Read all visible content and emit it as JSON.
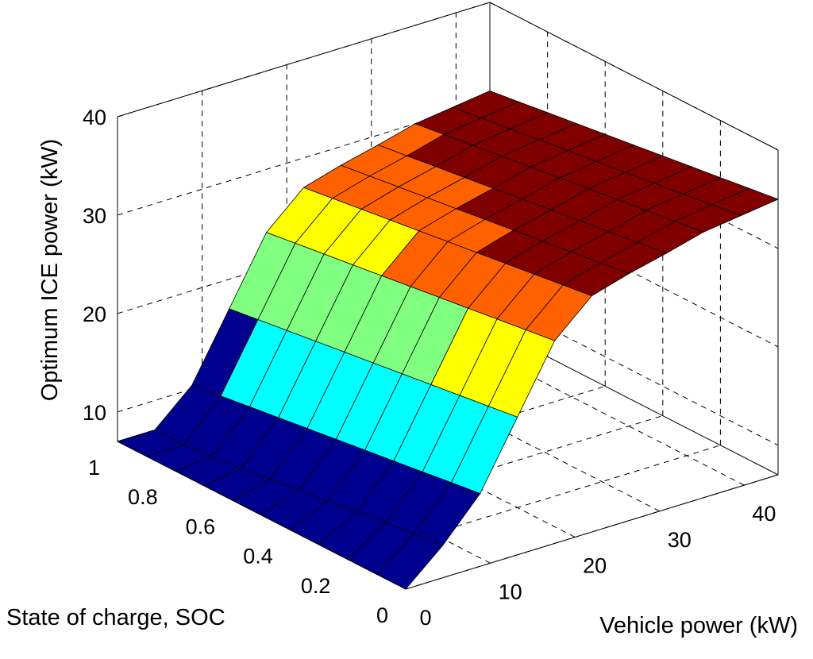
{
  "chart_data": {
    "type": "surface",
    "title": "",
    "xlabel": "Vehicle power (kW)",
    "ylabel": "State of charge, SOC",
    "zlabel": "Optimum ICE power (kW)",
    "x_ticks": [
      "0",
      "10",
      "20",
      "30",
      "40"
    ],
    "y_ticks": [
      "0",
      "0.2",
      "0.4",
      "0.6",
      "0.8",
      "1"
    ],
    "z_ticks": [
      "10",
      "20",
      "30",
      "40"
    ],
    "xlim": [
      0,
      44
    ],
    "ylim": [
      0,
      1
    ],
    "zlim": [
      7,
      40
    ],
    "grid": true,
    "colormap": "jet",
    "x": [
      0,
      4.4,
      8.8,
      13.2,
      17.6,
      22,
      26.4,
      30.8,
      35.2,
      39.6,
      44
    ],
    "y": [
      0,
      0.1,
      0.2,
      0.3,
      0.4,
      0.5,
      0.6,
      0.7,
      0.8,
      0.9,
      1.0
    ],
    "z": [
      [
        7,
        10.3,
        14.4,
        21.0,
        27.6,
        31.0,
        32.1,
        33.0,
        34.0,
        34.5,
        35.0
      ],
      [
        7,
        10.0,
        14.0,
        20.6,
        27.2,
        30.6,
        31.7,
        32.6,
        33.6,
        34.1,
        34.6
      ],
      [
        7,
        9.6,
        13.6,
        20.2,
        26.8,
        30.2,
        31.3,
        32.2,
        33.2,
        33.7,
        34.2
      ],
      [
        7,
        9.2,
        13.2,
        19.8,
        26.4,
        29.8,
        30.9,
        31.8,
        32.8,
        33.3,
        33.8
      ],
      [
        7,
        8.8,
        12.8,
        19.4,
        26.0,
        29.4,
        30.5,
        31.4,
        32.4,
        32.9,
        33.4
      ],
      [
        7,
        8.4,
        12.4,
        19.0,
        25.6,
        29.0,
        30.1,
        31.0,
        32.0,
        32.5,
        33.0
      ],
      [
        7,
        8.0,
        12.0,
        18.6,
        25.2,
        28.6,
        29.7,
        30.6,
        31.6,
        32.1,
        32.6
      ],
      [
        7,
        7.6,
        11.6,
        18.2,
        24.8,
        28.2,
        29.3,
        30.2,
        31.2,
        31.7,
        32.2
      ],
      [
        7,
        7.3,
        11.2,
        17.8,
        24.4,
        27.8,
        28.9,
        29.8,
        30.8,
        31.3,
        31.8
      ],
      [
        7,
        7.0,
        10.8,
        17.4,
        24.0,
        27.4,
        28.5,
        29.4,
        30.4,
        30.9,
        31.4
      ],
      [
        7,
        7.0,
        10.4,
        17.0,
        23.6,
        27.0,
        28.1,
        29.0,
        30.0,
        30.5,
        31.0
      ]
    ]
  }
}
